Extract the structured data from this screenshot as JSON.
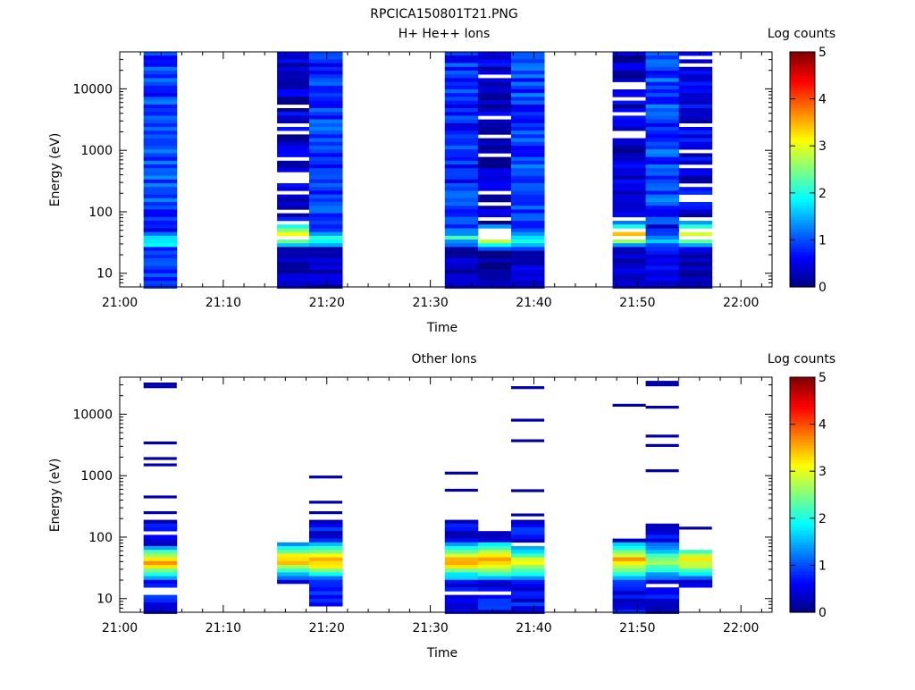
{
  "figure_title": "RPCICA150801T21.PNG",
  "chart_data": [
    {
      "type": "heatmap",
      "title": "H+ He++ Ions",
      "xlabel": "Time",
      "ylabel": "Energy (eV)",
      "x_ticks": [
        "21:00",
        "21:10",
        "21:20",
        "21:30",
        "21:40",
        "21:50",
        "22:00"
      ],
      "y_ticks": [
        "10",
        "100",
        "1000",
        "10000"
      ],
      "y_scale": "log",
      "ylim_eV": [
        6,
        40000
      ],
      "xlim_minutes_after_21": [
        0,
        63
      ],
      "colorbar": {
        "label": "Log counts",
        "ticks": [
          "0",
          "1",
          "2",
          "3",
          "4",
          "5"
        ],
        "range": [
          0,
          5
        ],
        "colormap": "jet"
      },
      "bins": [
        {
          "t_start": "21:02.3",
          "t_end": "21:05.5",
          "profile": {
            "low": 0.9,
            "low_top_eV": 25,
            "peak": 2.0,
            "peak_eV": 32,
            "high": 0.95,
            "gaps": 0.0
          }
        },
        {
          "t_start": "21:15.2",
          "t_end": "21:18.3",
          "profile": {
            "low": 0.3,
            "low_top_eV": 25,
            "peak": 3.6,
            "peak_eV": 40,
            "high": 0.4,
            "gaps": 0.18
          }
        },
        {
          "t_start": "21:18.3",
          "t_end": "21:21.5",
          "profile": {
            "low": 0.35,
            "low_top_eV": 25,
            "peak": 2.3,
            "peak_eV": 35,
            "high": 0.85,
            "gaps": 0.0
          }
        },
        {
          "t_start": "21:31.4",
          "t_end": "21:34.6",
          "profile": {
            "low": 0.3,
            "low_top_eV": 25,
            "peak": 2.0,
            "peak_eV": 38,
            "high": 0.8,
            "gaps": 0.0
          }
        },
        {
          "t_start": "21:34.6",
          "t_end": "21:37.8",
          "profile": {
            "low": 0.1,
            "low_top_eV": 22,
            "peak": 3.5,
            "peak_eV": 40,
            "high": 0.4,
            "gaps": 0.15
          }
        },
        {
          "t_start": "21:37.8",
          "t_end": "21:41.0",
          "profile": {
            "low": 0.4,
            "low_top_eV": 22,
            "peak": 1.9,
            "peak_eV": 35,
            "high": 0.9,
            "gaps": 0.0
          }
        },
        {
          "t_start": "21:47.6",
          "t_end": "21:50.8",
          "profile": {
            "low": 0.3,
            "low_top_eV": 25,
            "peak": 3.7,
            "peak_eV": 42,
            "high": 0.35,
            "gaps": 0.1
          }
        },
        {
          "t_start": "21:50.8",
          "t_end": "21:54.0",
          "profile": {
            "low": 0.5,
            "low_top_eV": 22,
            "peak": 1.6,
            "peak_eV": 35,
            "high": 0.95,
            "gaps": 0.0
          }
        },
        {
          "t_start": "21:54.0",
          "t_end": "21:57.2",
          "profile": {
            "low": 0.2,
            "low_top_eV": 22,
            "peak": 3.4,
            "peak_eV": 42,
            "high": 0.45,
            "gaps": 0.15
          }
        }
      ]
    },
    {
      "type": "heatmap",
      "title": "Other Ions",
      "xlabel": "Time",
      "ylabel": "Energy (eV)",
      "x_ticks": [
        "21:00",
        "21:10",
        "21:20",
        "21:30",
        "21:40",
        "21:50",
        "22:00"
      ],
      "y_ticks": [
        "10",
        "100",
        "1000",
        "10000"
      ],
      "y_scale": "log",
      "ylim_eV": [
        6,
        40000
      ],
      "xlim_minutes_after_21": [
        0,
        63
      ],
      "colorbar": {
        "label": "Log counts",
        "ticks": [
          "0",
          "1",
          "2",
          "3",
          "4",
          "5"
        ],
        "range": [
          0,
          5
        ],
        "colormap": "jet"
      },
      "bins": [
        {
          "t_start": "21:02.3",
          "t_end": "21:05.5",
          "fill_eV": [
            6,
            200
          ],
          "peak": 3.5,
          "peak_eV": 38,
          "sparse_lines_eV": [
            250,
            450,
            1500,
            1900,
            3400,
            28000,
            31000
          ]
        },
        {
          "t_start": "21:15.2",
          "t_end": "21:18.3",
          "fill_eV": [
            15,
            90
          ],
          "peak": 3.6,
          "peak_eV": 42,
          "sparse_lines_eV": []
        },
        {
          "t_start": "21:18.3",
          "t_end": "21:21.5",
          "fill_eV": [
            6,
            200
          ],
          "peak": 3.9,
          "peak_eV": 42,
          "sparse_lines_eV": [
            250,
            370,
            950
          ]
        },
        {
          "t_start": "21:31.4",
          "t_end": "21:34.6",
          "fill_eV": [
            6,
            200
          ],
          "peak": 3.7,
          "peak_eV": 40,
          "sparse_lines_eV": [
            580,
            1100
          ]
        },
        {
          "t_start": "21:34.6",
          "t_end": "21:37.8",
          "fill_eV": [
            6,
            120
          ],
          "peak": 3.8,
          "peak_eV": 42,
          "sparse_lines_eV": []
        },
        {
          "t_start": "21:37.8",
          "t_end": "21:41.0",
          "fill_eV": [
            6,
            200
          ],
          "peak": 3.3,
          "peak_eV": 38,
          "sparse_lines_eV": [
            230,
            570,
            3700,
            8000,
            27000
          ]
        },
        {
          "t_start": "21:47.6",
          "t_end": "21:50.8",
          "fill_eV": [
            6,
            90
          ],
          "peak": 3.6,
          "peak_eV": 42,
          "sparse_lines_eV": [
            14000
          ]
        },
        {
          "t_start": "21:50.8",
          "t_end": "21:54.0",
          "fill_eV": [
            6,
            170
          ],
          "peak": 2.8,
          "peak_eV": 40,
          "sparse_lines_eV": [
            1200,
            3100,
            4400,
            13000,
            30000,
            33000
          ]
        },
        {
          "t_start": "21:54.0",
          "t_end": "21:57.2",
          "fill_eV": [
            15,
            60
          ],
          "peak": 3.4,
          "peak_eV": 42,
          "sparse_lines_eV": [
            140
          ]
        }
      ]
    }
  ]
}
